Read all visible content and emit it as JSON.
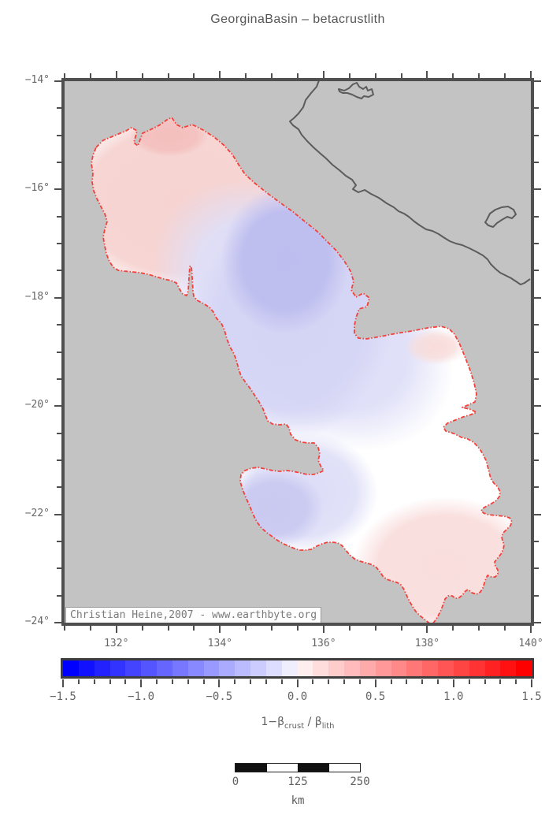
{
  "title": "GeorginaBasin – betacrustlith",
  "map": {
    "attribution": "Christian Heine,2007 - www.earthbyte.org",
    "lon_axis": {
      "range": [
        131,
        140
      ],
      "minor_step": 0.5,
      "labeled": [
        {
          "value": 132,
          "label": "132°"
        },
        {
          "value": 134,
          "label": "134°"
        },
        {
          "value": 136,
          "label": "136°"
        },
        {
          "value": 138,
          "label": "138°"
        },
        {
          "value": 140,
          "label": "140°"
        }
      ]
    },
    "lat_axis": {
      "range": [
        -14,
        -24
      ],
      "minor_step": 0.5,
      "labeled": [
        {
          "value": -14,
          "label": "−14°"
        },
        {
          "value": -16,
          "label": "−16°"
        },
        {
          "value": -18,
          "label": "−18°"
        },
        {
          "value": -20,
          "label": "−20°"
        },
        {
          "value": -22,
          "label": "−22°"
        },
        {
          "value": -24,
          "label": "−24°"
        }
      ]
    },
    "colors": {
      "land_background": "#c3c3c3",
      "coastline": "#5c5c5c",
      "basin_outline": "#f4403a",
      "frame": "#4f4f4f",
      "basin_fills": [
        "#f3bfbd",
        "#f6d3d1",
        "#ffffff",
        "#dfdff8",
        "#d4d4f5",
        "#bdbdef",
        "#c9c9f1",
        "#f9dedd"
      ]
    }
  },
  "colorbar": {
    "range": [
      -1.5,
      1.5
    ],
    "step": 0.1,
    "colors": {
      "min": "#0000ff",
      "mid": "#ffffff",
      "max": "#ff0000"
    },
    "major_ticks": [
      {
        "value": -1.5,
        "label": "−1.5"
      },
      {
        "value": -1.0,
        "label": "−1.0"
      },
      {
        "value": -0.5,
        "label": "−0.5"
      },
      {
        "value": 0.0,
        "label": "0.0"
      },
      {
        "value": 0.5,
        "label": "0.5"
      },
      {
        "value": 1.0,
        "label": "1.0"
      },
      {
        "value": 1.5,
        "label": "1.5"
      }
    ],
    "label": {
      "prefix": "1−β",
      "sub1": "crust",
      "mid": " / β",
      "sub2": "lith"
    }
  },
  "scalebar": {
    "segments": 4,
    "labels": [
      "0",
      "125",
      "250"
    ],
    "unit": "km"
  }
}
